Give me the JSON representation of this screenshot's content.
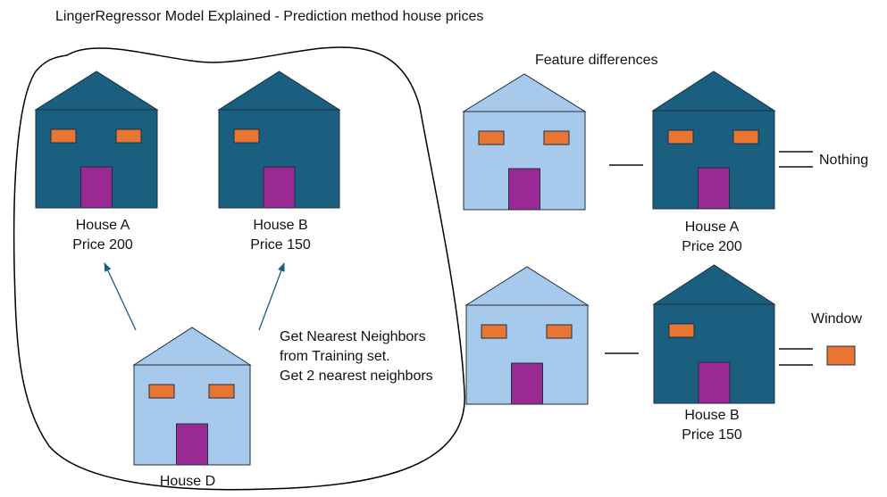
{
  "title": "LingerRegressor Model Explained - Prediction method house prices",
  "colors": {
    "dark_house": "#1a5f80",
    "light_house": "#a6c9ec",
    "window": "#e87531",
    "door": "#9a2a93",
    "stroke": "#1f2f3f",
    "arrow": "#1a5f80"
  },
  "icons": {
    "house": "house-icon",
    "window": "window-icon",
    "door": "door-icon"
  },
  "neighbors_section": {
    "house_a": {
      "name": "House A",
      "price": "Price 200"
    },
    "house_b": {
      "name": "House B",
      "price": "Price 150"
    },
    "house_d": {
      "name": "House D"
    },
    "explanation": [
      "Get Nearest Neighbors",
      "from Training set.",
      "Get 2 nearest neighbors"
    ]
  },
  "differences_section": {
    "title": "Feature differences",
    "row_a": {
      "name": "House A",
      "price": "Price 200",
      "result": "Nothing"
    },
    "row_b": {
      "name": "House B",
      "price": "Price 150",
      "result": "Window"
    }
  }
}
